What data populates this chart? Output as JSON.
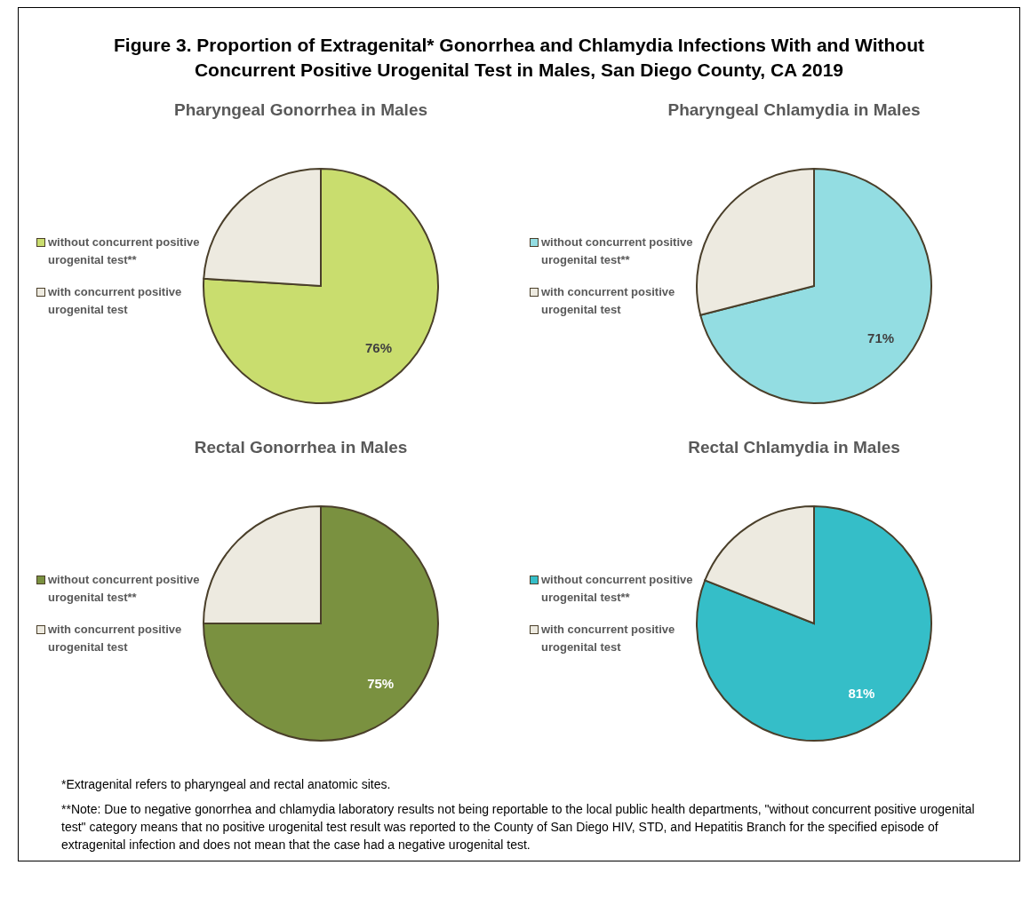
{
  "chart_data": [
    {
      "type": "other",
      "title": "Figure 3. Proportion of Extragenital* Gonorrhea and Chlamydia Infections With and Without Concurrent Positive Urogenital Test in Males, San Diego County, CA 2019"
    },
    {
      "type": "pie",
      "title": "Pharyngeal Gonorrhea in Males",
      "categories": [
        "without concurrent positive urogenital test**",
        "with concurrent positive urogenital test"
      ],
      "values": [
        76,
        24
      ],
      "value_labels": [
        "76%",
        null
      ],
      "colors": [
        "#c9dd6e",
        "#edeae0"
      ],
      "legend": "left"
    },
    {
      "type": "pie",
      "title": "Pharyngeal Chlamydia in Males",
      "categories": [
        "without concurrent positive urogenital test**",
        "with concurrent positive urogenital test"
      ],
      "values": [
        71,
        29
      ],
      "value_labels": [
        "71%",
        null
      ],
      "colors": [
        "#93dde2",
        "#edeae0"
      ],
      "legend": "left"
    },
    {
      "type": "pie",
      "title": "Rectal Gonorrhea in Males",
      "categories": [
        "without concurrent positive urogenital test**",
        "with concurrent positive urogenital test"
      ],
      "values": [
        75,
        25
      ],
      "value_labels": [
        "75%",
        null
      ],
      "colors": [
        "#7a9140",
        "#edeae0"
      ],
      "legend": "left"
    },
    {
      "type": "pie",
      "title": "Rectal Chlamydia in Males",
      "categories": [
        "without concurrent positive urogenital test**",
        "with concurrent positive urogenital test"
      ],
      "values": [
        81,
        19
      ],
      "value_labels": [
        "81%",
        null
      ],
      "colors": [
        "#35bec8",
        "#edeae0"
      ],
      "legend": "left"
    },
    {
      "type": "other",
      "annotations": [
        "*Extragenital refers to pharyngeal and rectal anatomic sites.",
        "**Note: Due to negative gonorrhea and chlamydia laboratory results not being reportable to the local public health departments, \"without concurrent positive urogenital test\" category means that no positive urogenital test result was reported to the County of San Diego HIV, STD, and Hepatitis Branch for the specified episode of extragenital infection and does not mean that the case had a negative urogenital test."
      ]
    }
  ]
}
